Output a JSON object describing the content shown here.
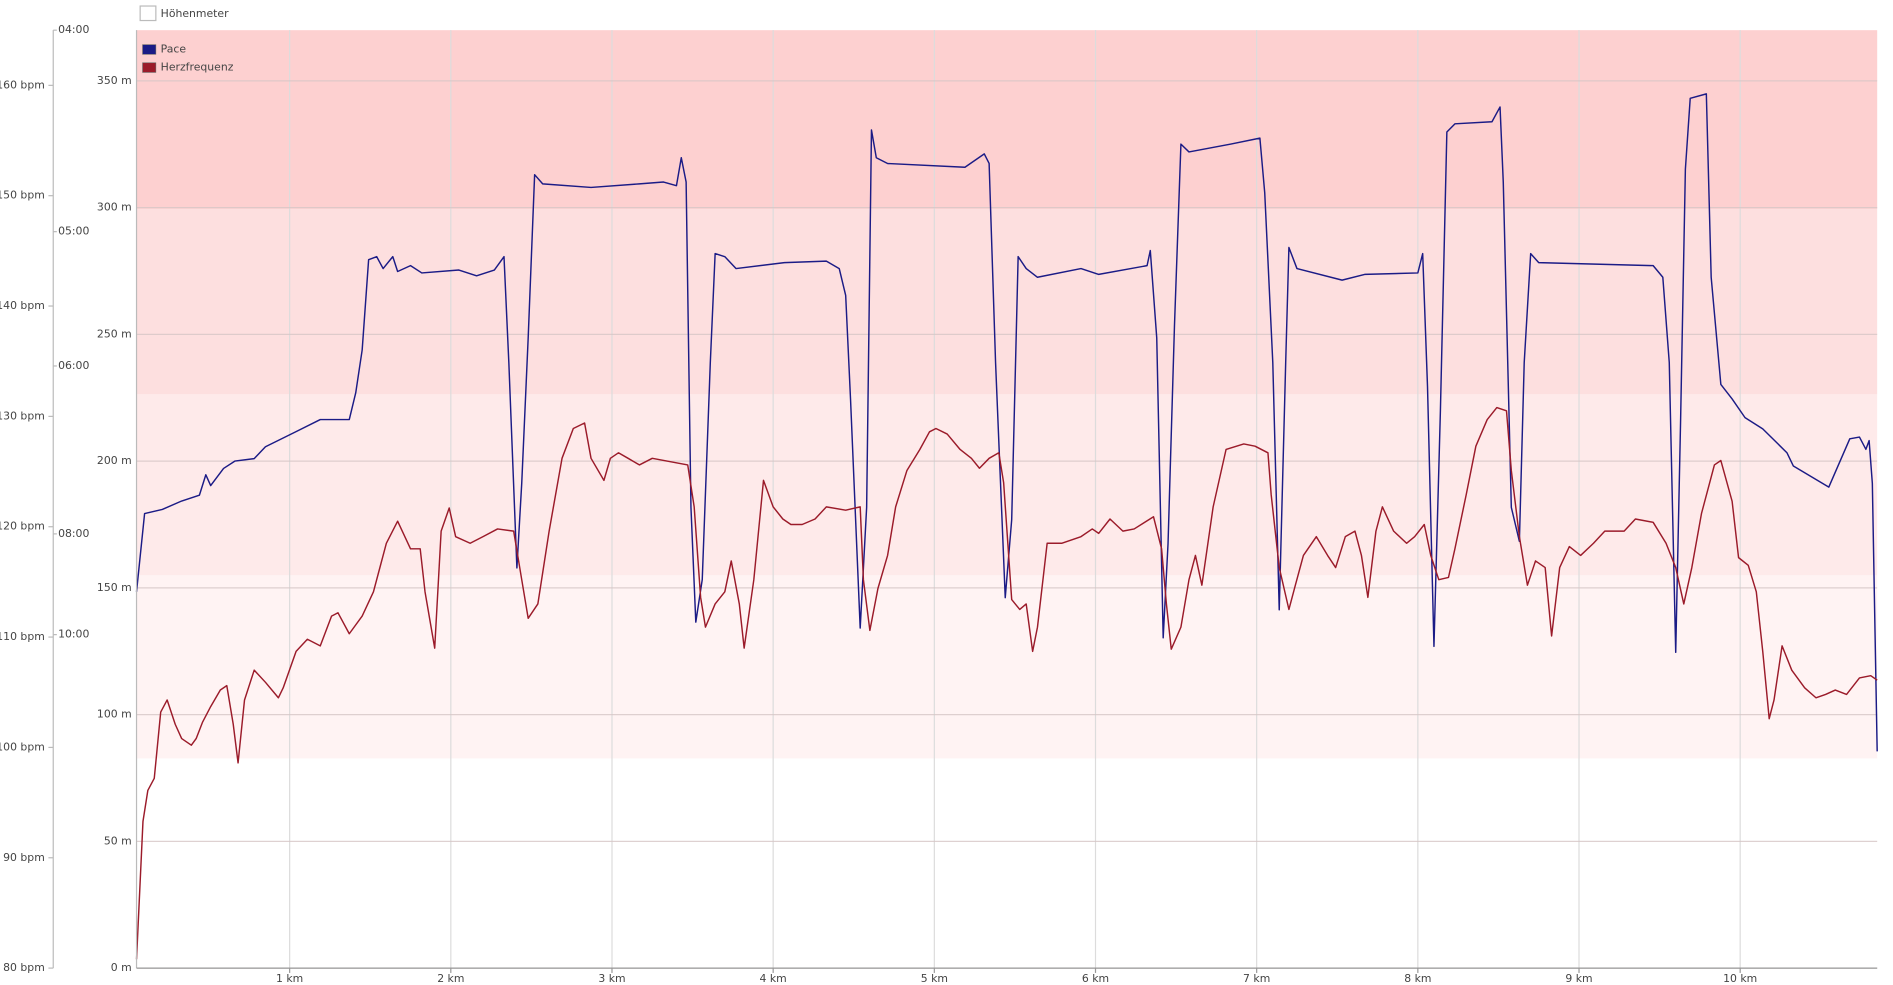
{
  "chart_data": {
    "type": "line",
    "legend_top": "Höhenmeter",
    "xlim": [
      0.05,
      10.85
    ],
    "xticks": [
      {
        "value": 1,
        "label": "1 km"
      },
      {
        "value": 2,
        "label": "2 km"
      },
      {
        "value": 3,
        "label": "3 km"
      },
      {
        "value": 4,
        "label": "4 km"
      },
      {
        "value": 5,
        "label": "5 km"
      },
      {
        "value": 6,
        "label": "6 km"
      },
      {
        "value": 7,
        "label": "7 km"
      },
      {
        "value": 8,
        "label": "8 km"
      },
      {
        "value": 9,
        "label": "9 km"
      },
      {
        "value": 10,
        "label": "10 km"
      }
    ],
    "ylim": [
      0,
      370
    ],
    "yticks": [
      {
        "value": 0,
        "label": "0 m"
      },
      {
        "value": 50,
        "label": "50 m"
      },
      {
        "value": 100,
        "label": "100 m"
      },
      {
        "value": 150,
        "label": "150 m"
      },
      {
        "value": 200,
        "label": "200 m"
      },
      {
        "value": 250,
        "label": "250 m"
      },
      {
        "value": 300,
        "label": "300 m"
      },
      {
        "value": 350,
        "label": "350 m"
      }
    ],
    "y2lim": [
      80,
      165
    ],
    "y2ticks": [
      {
        "value": 80,
        "label": "80 bpm"
      },
      {
        "value": 90,
        "label": "90 bpm"
      },
      {
        "value": 100,
        "label": "100 bpm"
      },
      {
        "value": 110,
        "label": "110 bpm"
      },
      {
        "value": 120,
        "label": "120 bpm"
      },
      {
        "value": 130,
        "label": "130 bpm"
      },
      {
        "value": 140,
        "label": "140 bpm"
      },
      {
        "value": 150,
        "label": "150 bpm"
      },
      {
        "value": 160,
        "label": "160 bpm"
      }
    ],
    "y3lim": [
      58,
      4
    ],
    "y3scale": "reciprocal",
    "y3ticks": [
      {
        "value": 4,
        "label": "04:00"
      },
      {
        "value": 5,
        "label": "05:00"
      },
      {
        "value": 6,
        "label": "06:00"
      },
      {
        "value": 8,
        "label": "08:00"
      },
      {
        "value": 10,
        "label": "10:00"
      }
    ],
    "grid": true,
    "zones": [
      {
        "from": 99.0,
        "to": 115.6,
        "color": "#fff3f3"
      },
      {
        "from": 115.6,
        "to": 132.0,
        "color": "#feeaea"
      },
      {
        "from": 132.0,
        "to": 148.8,
        "color": "#fddfdf"
      },
      {
        "from": 148.8,
        "to": 165,
        "color": "#fdd0d0"
      }
    ],
    "series": [
      {
        "name": "Pace",
        "color": "#1b1b86",
        "axis": "y3",
        "x": [
          0.05,
          0.1,
          0.21,
          0.33,
          0.44,
          0.48,
          0.51,
          0.59,
          0.66,
          0.78,
          0.85,
          1.04,
          1.19,
          1.37,
          1.41,
          1.45,
          1.49,
          1.54,
          1.58,
          1.64,
          1.67,
          1.75,
          1.82,
          2.05,
          2.16,
          2.27,
          2.33,
          2.36,
          2.41,
          2.44,
          2.48,
          2.52,
          2.57,
          2.87,
          3.17,
          3.32,
          3.4,
          3.43,
          3.46,
          3.49,
          3.52,
          3.56,
          3.61,
          3.64,
          3.7,
          3.77,
          4.07,
          4.33,
          4.41,
          4.45,
          4.48,
          4.54,
          4.58,
          4.61,
          4.64,
          4.71,
          5.19,
          5.31,
          5.34,
          5.38,
          5.44,
          5.48,
          5.52,
          5.57,
          5.64,
          5.91,
          6.02,
          6.32,
          6.34,
          6.38,
          6.42,
          6.45,
          6.49,
          6.53,
          6.58,
          6.84,
          7.02,
          7.05,
          7.1,
          7.14,
          7.18,
          7.2,
          7.25,
          7.53,
          7.67,
          8.0,
          8.03,
          8.06,
          8.1,
          8.14,
          8.18,
          8.23,
          8.46,
          8.51,
          8.53,
          8.58,
          8.63,
          8.66,
          8.7,
          8.75,
          9.46,
          9.52,
          9.56,
          9.6,
          9.63,
          9.66,
          9.69,
          9.79,
          9.82,
          9.88,
          9.95,
          10.03,
          10.14,
          10.29,
          10.33,
          10.55,
          10.68,
          10.74,
          10.78,
          10.8,
          10.82,
          10.85
        ],
        "values": [
          9.04,
          7.69,
          7.63,
          7.51,
          7.43,
          7.16,
          7.3,
          7.08,
          6.99,
          6.96,
          6.82,
          6.65,
          6.52,
          6.52,
          6.25,
          5.86,
          5.18,
          5.16,
          5.24,
          5.16,
          5.26,
          5.22,
          5.27,
          5.25,
          5.29,
          5.25,
          5.16,
          5.97,
          8.58,
          7.27,
          5.76,
          4.67,
          4.72,
          4.74,
          4.72,
          4.71,
          4.73,
          4.58,
          4.71,
          7.6,
          9.7,
          8.8,
          5.97,
          5.14,
          5.16,
          5.24,
          5.2,
          5.19,
          5.24,
          5.43,
          6.31,
          9.84,
          7.6,
          4.44,
          4.58,
          4.61,
          4.63,
          4.56,
          4.61,
          5.97,
          9.16,
          7.78,
          5.16,
          5.24,
          5.3,
          5.24,
          5.28,
          5.22,
          5.12,
          5.76,
          10.08,
          8.16,
          5.66,
          4.51,
          4.55,
          4.51,
          4.48,
          4.77,
          5.97,
          9.42,
          5.97,
          5.1,
          5.24,
          5.32,
          5.28,
          5.27,
          5.14,
          6.19,
          10.3,
          6.43,
          4.45,
          4.41,
          4.4,
          4.33,
          4.71,
          7.6,
          8.12,
          5.97,
          5.14,
          5.2,
          5.22,
          5.3,
          5.97,
          10.46,
          6.55,
          4.64,
          4.29,
          4.27,
          5.3,
          6.17,
          6.31,
          6.5,
          6.62,
          6.89,
          7.05,
          7.32,
          6.73,
          6.71,
          6.85,
          6.75,
          7.27,
          14.08
        ]
      },
      {
        "name": "Herzfrequenz",
        "color": "#9b1b2a",
        "axis": "y2",
        "x": [
          0.05,
          0.09,
          0.12,
          0.16,
          0.2,
          0.24,
          0.29,
          0.33,
          0.39,
          0.42,
          0.46,
          0.51,
          0.57,
          0.61,
          0.65,
          0.68,
          0.72,
          0.78,
          0.85,
          0.93,
          0.96,
          1.04,
          1.11,
          1.19,
          1.26,
          1.3,
          1.37,
          1.45,
          1.52,
          1.6,
          1.67,
          1.75,
          1.81,
          1.84,
          1.9,
          1.94,
          1.99,
          2.03,
          2.12,
          2.2,
          2.29,
          2.39,
          2.44,
          2.48,
          2.54,
          2.61,
          2.69,
          2.76,
          2.83,
          2.87,
          2.95,
          2.99,
          3.04,
          3.1,
          3.17,
          3.25,
          3.47,
          3.51,
          3.55,
          3.58,
          3.64,
          3.7,
          3.74,
          3.79,
          3.82,
          3.88,
          3.94,
          4.0,
          4.06,
          4.11,
          4.18,
          4.26,
          4.33,
          4.45,
          4.54,
          4.56,
          4.6,
          4.65,
          4.71,
          4.76,
          4.83,
          4.91,
          4.97,
          5.01,
          5.08,
          5.16,
          5.23,
          5.28,
          5.34,
          5.4,
          5.43,
          5.48,
          5.53,
          5.57,
          5.61,
          5.64,
          5.7,
          5.79,
          5.91,
          5.98,
          6.02,
          6.09,
          6.17,
          6.24,
          6.36,
          6.41,
          6.44,
          6.47,
          6.53,
          6.58,
          6.62,
          6.66,
          6.73,
          6.81,
          6.92,
          6.99,
          7.07,
          7.09,
          7.14,
          7.2,
          7.24,
          7.29,
          7.37,
          7.44,
          7.49,
          7.55,
          7.61,
          7.65,
          7.69,
          7.74,
          7.78,
          7.85,
          7.93,
          7.98,
          8.04,
          8.08,
          8.13,
          8.19,
          8.23,
          8.3,
          8.36,
          8.43,
          8.49,
          8.55,
          8.58,
          8.63,
          8.68,
          8.73,
          8.79,
          8.83,
          8.88,
          8.94,
          9.01,
          9.09,
          9.16,
          9.28,
          9.35,
          9.46,
          9.54,
          9.6,
          9.65,
          9.7,
          9.76,
          9.84,
          9.88,
          9.95,
          9.99,
          10.05,
          10.1,
          10.14,
          10.18,
          10.21,
          10.26,
          10.32,
          10.4,
          10.47,
          10.53,
          10.59,
          10.66,
          10.74,
          10.81,
          10.85
        ],
        "values": [
          80.8,
          93.3,
          96.1,
          97.2,
          103.2,
          104.3,
          102.1,
          100.8,
          100.2,
          100.8,
          102.3,
          103.7,
          105.2,
          105.6,
          102.1,
          98.6,
          104.3,
          107.0,
          105.9,
          104.5,
          105.4,
          108.7,
          109.8,
          109.2,
          111.9,
          112.2,
          110.3,
          111.9,
          114.1,
          118.5,
          120.5,
          118.0,
          118.0,
          114.1,
          109.0,
          119.6,
          121.7,
          119.1,
          118.5,
          119.1,
          119.8,
          119.6,
          115.2,
          111.7,
          113.0,
          119.6,
          126.2,
          128.9,
          129.4,
          126.2,
          124.2,
          126.2,
          126.7,
          126.2,
          125.6,
          126.2,
          125.6,
          121.8,
          113.6,
          110.9,
          113.0,
          114.1,
          116.9,
          113.0,
          109.0,
          115.2,
          124.2,
          121.8,
          120.7,
          120.2,
          120.2,
          120.7,
          121.8,
          121.5,
          121.8,
          115.2,
          110.6,
          114.4,
          117.4,
          121.8,
          125.1,
          127.0,
          128.6,
          128.9,
          128.4,
          127.0,
          126.2,
          125.3,
          126.2,
          126.7,
          124.0,
          113.4,
          112.5,
          113.0,
          108.7,
          110.9,
          118.5,
          118.5,
          119.1,
          119.8,
          119.4,
          120.7,
          119.6,
          119.8,
          120.9,
          118.0,
          113.0,
          108.9,
          110.9,
          115.2,
          117.4,
          114.7,
          121.8,
          127.0,
          127.5,
          127.3,
          126.7,
          122.9,
          116.3,
          112.5,
          114.7,
          117.4,
          119.1,
          117.4,
          116.3,
          119.1,
          119.6,
          117.4,
          113.6,
          119.6,
          121.8,
          119.6,
          118.5,
          119.1,
          120.2,
          117.4,
          115.2,
          115.4,
          118.0,
          122.9,
          127.3,
          129.7,
          130.8,
          130.5,
          125.1,
          119.1,
          114.7,
          116.9,
          116.3,
          110.1,
          116.3,
          118.2,
          117.4,
          118.5,
          119.6,
          119.6,
          120.7,
          120.4,
          118.5,
          116.3,
          113.0,
          116.3,
          121.2,
          125.6,
          126.0,
          122.3,
          117.2,
          116.5,
          114.1,
          108.7,
          102.6,
          104.3,
          109.2,
          107.0,
          105.4,
          104.5,
          104.8,
          105.2,
          104.8,
          106.3,
          106.5,
          106.1
        ]
      }
    ]
  }
}
